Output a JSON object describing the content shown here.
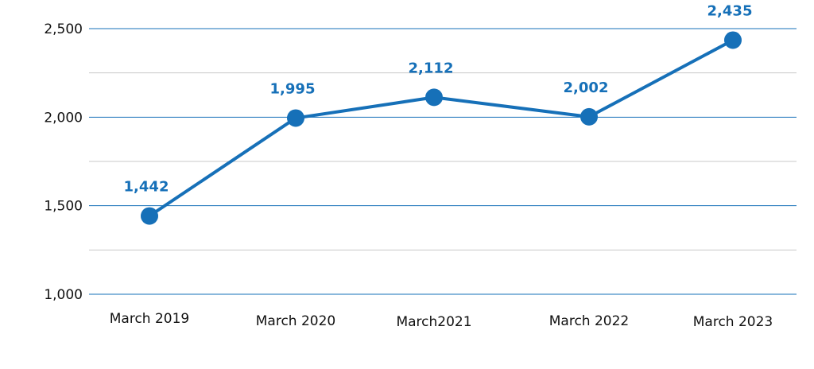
{
  "chart_data": {
    "type": "line",
    "categories": [
      "March 2019",
      "March 2020",
      "March2021",
      "March 2022",
      "March 2023"
    ],
    "series": [
      {
        "values": [
          1442,
          1995,
          2112,
          2002,
          2435
        ],
        "value_labels": [
          "1,442",
          "1,995",
          "2,112",
          "2,002",
          "2,435"
        ]
      }
    ],
    "ylim": [
      1000,
      2500
    ],
    "yticks": [
      1000,
      1500,
      2000,
      2500
    ],
    "ytick_labels": [
      "1,000",
      "1,500",
      "2,000",
      "2,500"
    ],
    "minor_gridlines": [
      1250,
      1750,
      2250
    ],
    "grid": true,
    "legend": "none",
    "colors": {
      "line": "#1670b8",
      "major_grid": "#1670b8",
      "minor_grid": "#c8c8c8",
      "label": "#1670b8"
    }
  }
}
